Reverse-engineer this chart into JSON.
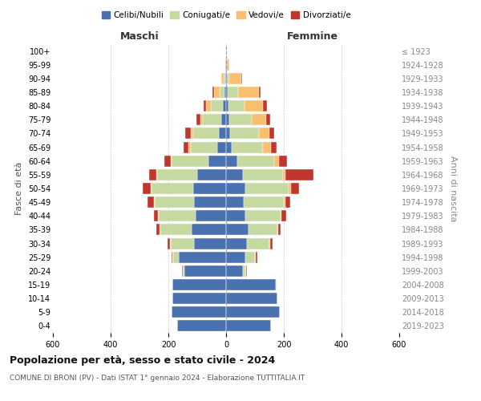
{
  "age_groups": [
    "0-4",
    "5-9",
    "10-14",
    "15-19",
    "20-24",
    "25-29",
    "30-34",
    "35-39",
    "40-44",
    "45-49",
    "50-54",
    "55-59",
    "60-64",
    "65-69",
    "70-74",
    "75-79",
    "80-84",
    "85-89",
    "90-94",
    "95-99",
    "100+"
  ],
  "birth_years": [
    "2019-2023",
    "2014-2018",
    "2009-2013",
    "2004-2008",
    "1999-2003",
    "1994-1998",
    "1989-1993",
    "1984-1988",
    "1979-1983",
    "1974-1978",
    "1969-1973",
    "1964-1968",
    "1959-1963",
    "1954-1958",
    "1949-1953",
    "1944-1948",
    "1939-1943",
    "1934-1938",
    "1929-1933",
    "1924-1928",
    "≤ 1923"
  ],
  "colors": {
    "celibi": "#4a72b0",
    "coniugati": "#c6d9a0",
    "vedovi": "#f9be6e",
    "divorziati": "#c0362c"
  },
  "maschi": {
    "celibi": [
      170,
      190,
      185,
      185,
      145,
      165,
      110,
      120,
      105,
      110,
      115,
      100,
      60,
      30,
      25,
      18,
      12,
      5,
      3,
      2,
      1
    ],
    "coniugati": [
      0,
      0,
      0,
      0,
      5,
      18,
      82,
      108,
      128,
      138,
      142,
      138,
      128,
      92,
      88,
      62,
      42,
      18,
      5,
      1,
      0
    ],
    "vedovi": [
      0,
      0,
      0,
      0,
      1,
      2,
      2,
      2,
      3,
      3,
      3,
      5,
      5,
      8,
      10,
      10,
      15,
      20,
      8,
      1,
      0
    ],
    "divorziati": [
      0,
      0,
      0,
      0,
      2,
      5,
      8,
      12,
      15,
      20,
      28,
      25,
      22,
      18,
      18,
      14,
      8,
      5,
      2,
      0,
      0
    ]
  },
  "femmine": {
    "celibi": [
      155,
      185,
      178,
      172,
      58,
      68,
      72,
      78,
      68,
      62,
      68,
      58,
      38,
      20,
      15,
      10,
      8,
      5,
      3,
      2,
      1
    ],
    "coniugati": [
      0,
      0,
      0,
      2,
      10,
      32,
      78,
      100,
      122,
      138,
      148,
      138,
      128,
      108,
      98,
      78,
      55,
      38,
      8,
      2,
      0
    ],
    "vedovi": [
      0,
      0,
      0,
      0,
      2,
      2,
      2,
      2,
      3,
      5,
      8,
      10,
      18,
      28,
      38,
      52,
      65,
      72,
      42,
      8,
      2
    ],
    "divorziati": [
      0,
      0,
      0,
      0,
      2,
      5,
      8,
      10,
      15,
      18,
      30,
      98,
      28,
      18,
      15,
      12,
      14,
      5,
      2,
      0,
      0
    ]
  },
  "xlim": 600,
  "title": "Popolazione per età, sesso e stato civile - 2024",
  "subtitle": "COMUNE DI BRONI (PV) - Dati ISTAT 1° gennaio 2024 - Elaborazione TUTTITALIA.IT",
  "ylabel_left": "Fasce di età",
  "ylabel_right": "Anni di nascita",
  "xlabel_maschi": "Maschi",
  "xlabel_femmine": "Femmine",
  "legend_labels": [
    "Celibi/Nubili",
    "Coniugati/e",
    "Vedovi/e",
    "Divorziati/e"
  ],
  "bg_color": "#ffffff",
  "grid_color": "#cccccc"
}
